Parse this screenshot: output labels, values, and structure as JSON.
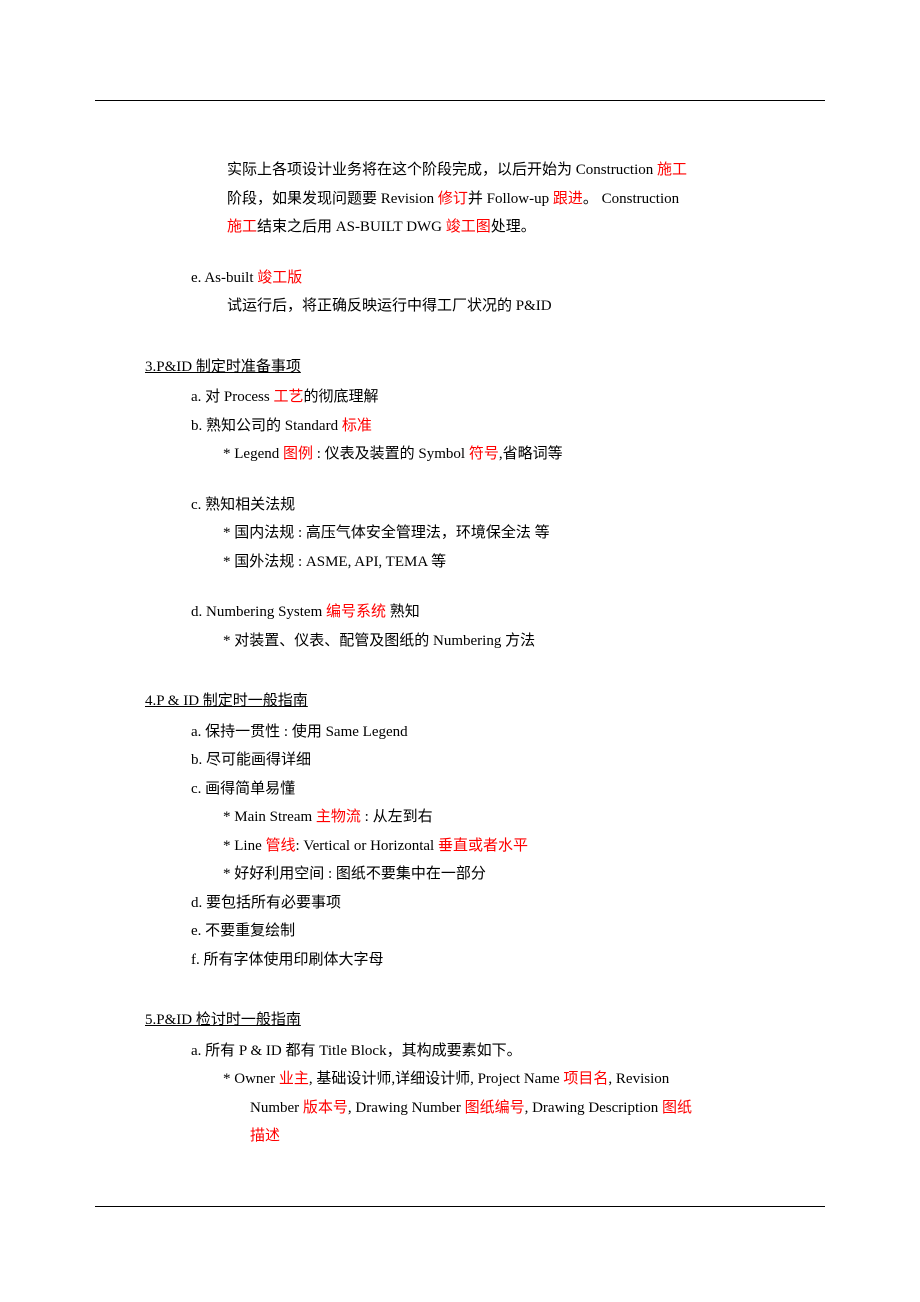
{
  "colors": {
    "highlight": "#ff0000",
    "text": "#000000",
    "background": "#ffffff"
  },
  "typography": {
    "font_family": "SimSun",
    "font_size_pt": 11,
    "line_height": 1.9
  },
  "para_d": {
    "l1_pre": "实际上各项设计业务将在这个阶段完成，以后开始为 Construction ",
    "l1_red": "施工",
    "l2_pre": "阶段，如果发现问题要 Revision ",
    "l2_red1": "修订",
    "l2_mid": "并 Follow-up ",
    "l2_red2": "跟进",
    "l2_post": "。 Construction",
    "l3_red": "施工",
    "l3_mid": "结束之后用  AS-BUILT DWG ",
    "l3_red2": "竣工图",
    "l3_post": "处理。"
  },
  "item_e": {
    "label_pre": "e.  As-built  ",
    "label_red": "竣工版",
    "desc": "试运行后，将正确反映运行中得工厂状况的  P&ID"
  },
  "section3": {
    "title": "3.P&ID  制定时准备事项",
    "a_pre": "a.   对 Process ",
    "a_red": "工艺",
    "a_post": "的彻底理解",
    "b_pre": "b.   熟知公司的 Standard ",
    "b_red": "标准",
    "b_sub_pre": "* Legend  ",
    "b_sub_red": "图例",
    "b_sub_mid": "  :  仪表及装置的 Symbol  ",
    "b_sub_red2": "符号",
    "b_sub_post": ",省略词等",
    "c": "c.   熟知相关法规",
    "c_sub1": "*  国内法规  :  高压气体安全管理法，环境保全法  等",
    "c_sub2": "*  国外法规  : ASME, API, TEMA  等",
    "d_pre": "d.   Numbering System ",
    "d_red": "编号系统",
    "d_post": "  熟知",
    "d_sub": "*  对装置、仪表、配管及图纸的  Numbering  方法"
  },
  "section4": {
    "title": "4.P & ID  制定时一般指南",
    "a": "a.   保持一贯性  :  使用 Same Legend",
    "b": "b.   尽可能画得详细",
    "c": "c.   画得简单易懂",
    "c_sub1_pre": "* Main Stream  ",
    "c_sub1_red": "主物流",
    "c_sub1_post": "  :  从左到右",
    "c_sub2_pre": "* Line  ",
    "c_sub2_red1": "管线",
    "c_sub2_mid": ": Vertical or Horizontal  ",
    "c_sub2_red2": "垂直或者水平",
    "c_sub3": "*  好好利用空间  :  图纸不要集中在一部分",
    "d": "d.   要包括所有必要事项",
    "e": "e.   不要重复绘制",
    "f": "f.   所有字体使用印刷体大字母"
  },
  "section5": {
    "title": "5.P&ID  检讨时一般指南",
    "a": "a.   所有  P & ID  都有  Title Block，其构成要素如下。",
    "a_sub_pre": "* Owner  ",
    "a_sub_red1": "业主",
    "a_sub_mid1": ",  基础设计师,详细设计师, Project Name  ",
    "a_sub_red2": "项目名",
    "a_sub_mid2": ", Revision",
    "a_sub2_pre": "Number  ",
    "a_sub2_red1": "版本号",
    "a_sub2_mid1": ", Drawing Number  ",
    "a_sub2_red2": "图纸编号",
    "a_sub2_mid2": ", Drawing Description  ",
    "a_sub2_red3": "图纸",
    "a_sub3_red": "描述"
  }
}
